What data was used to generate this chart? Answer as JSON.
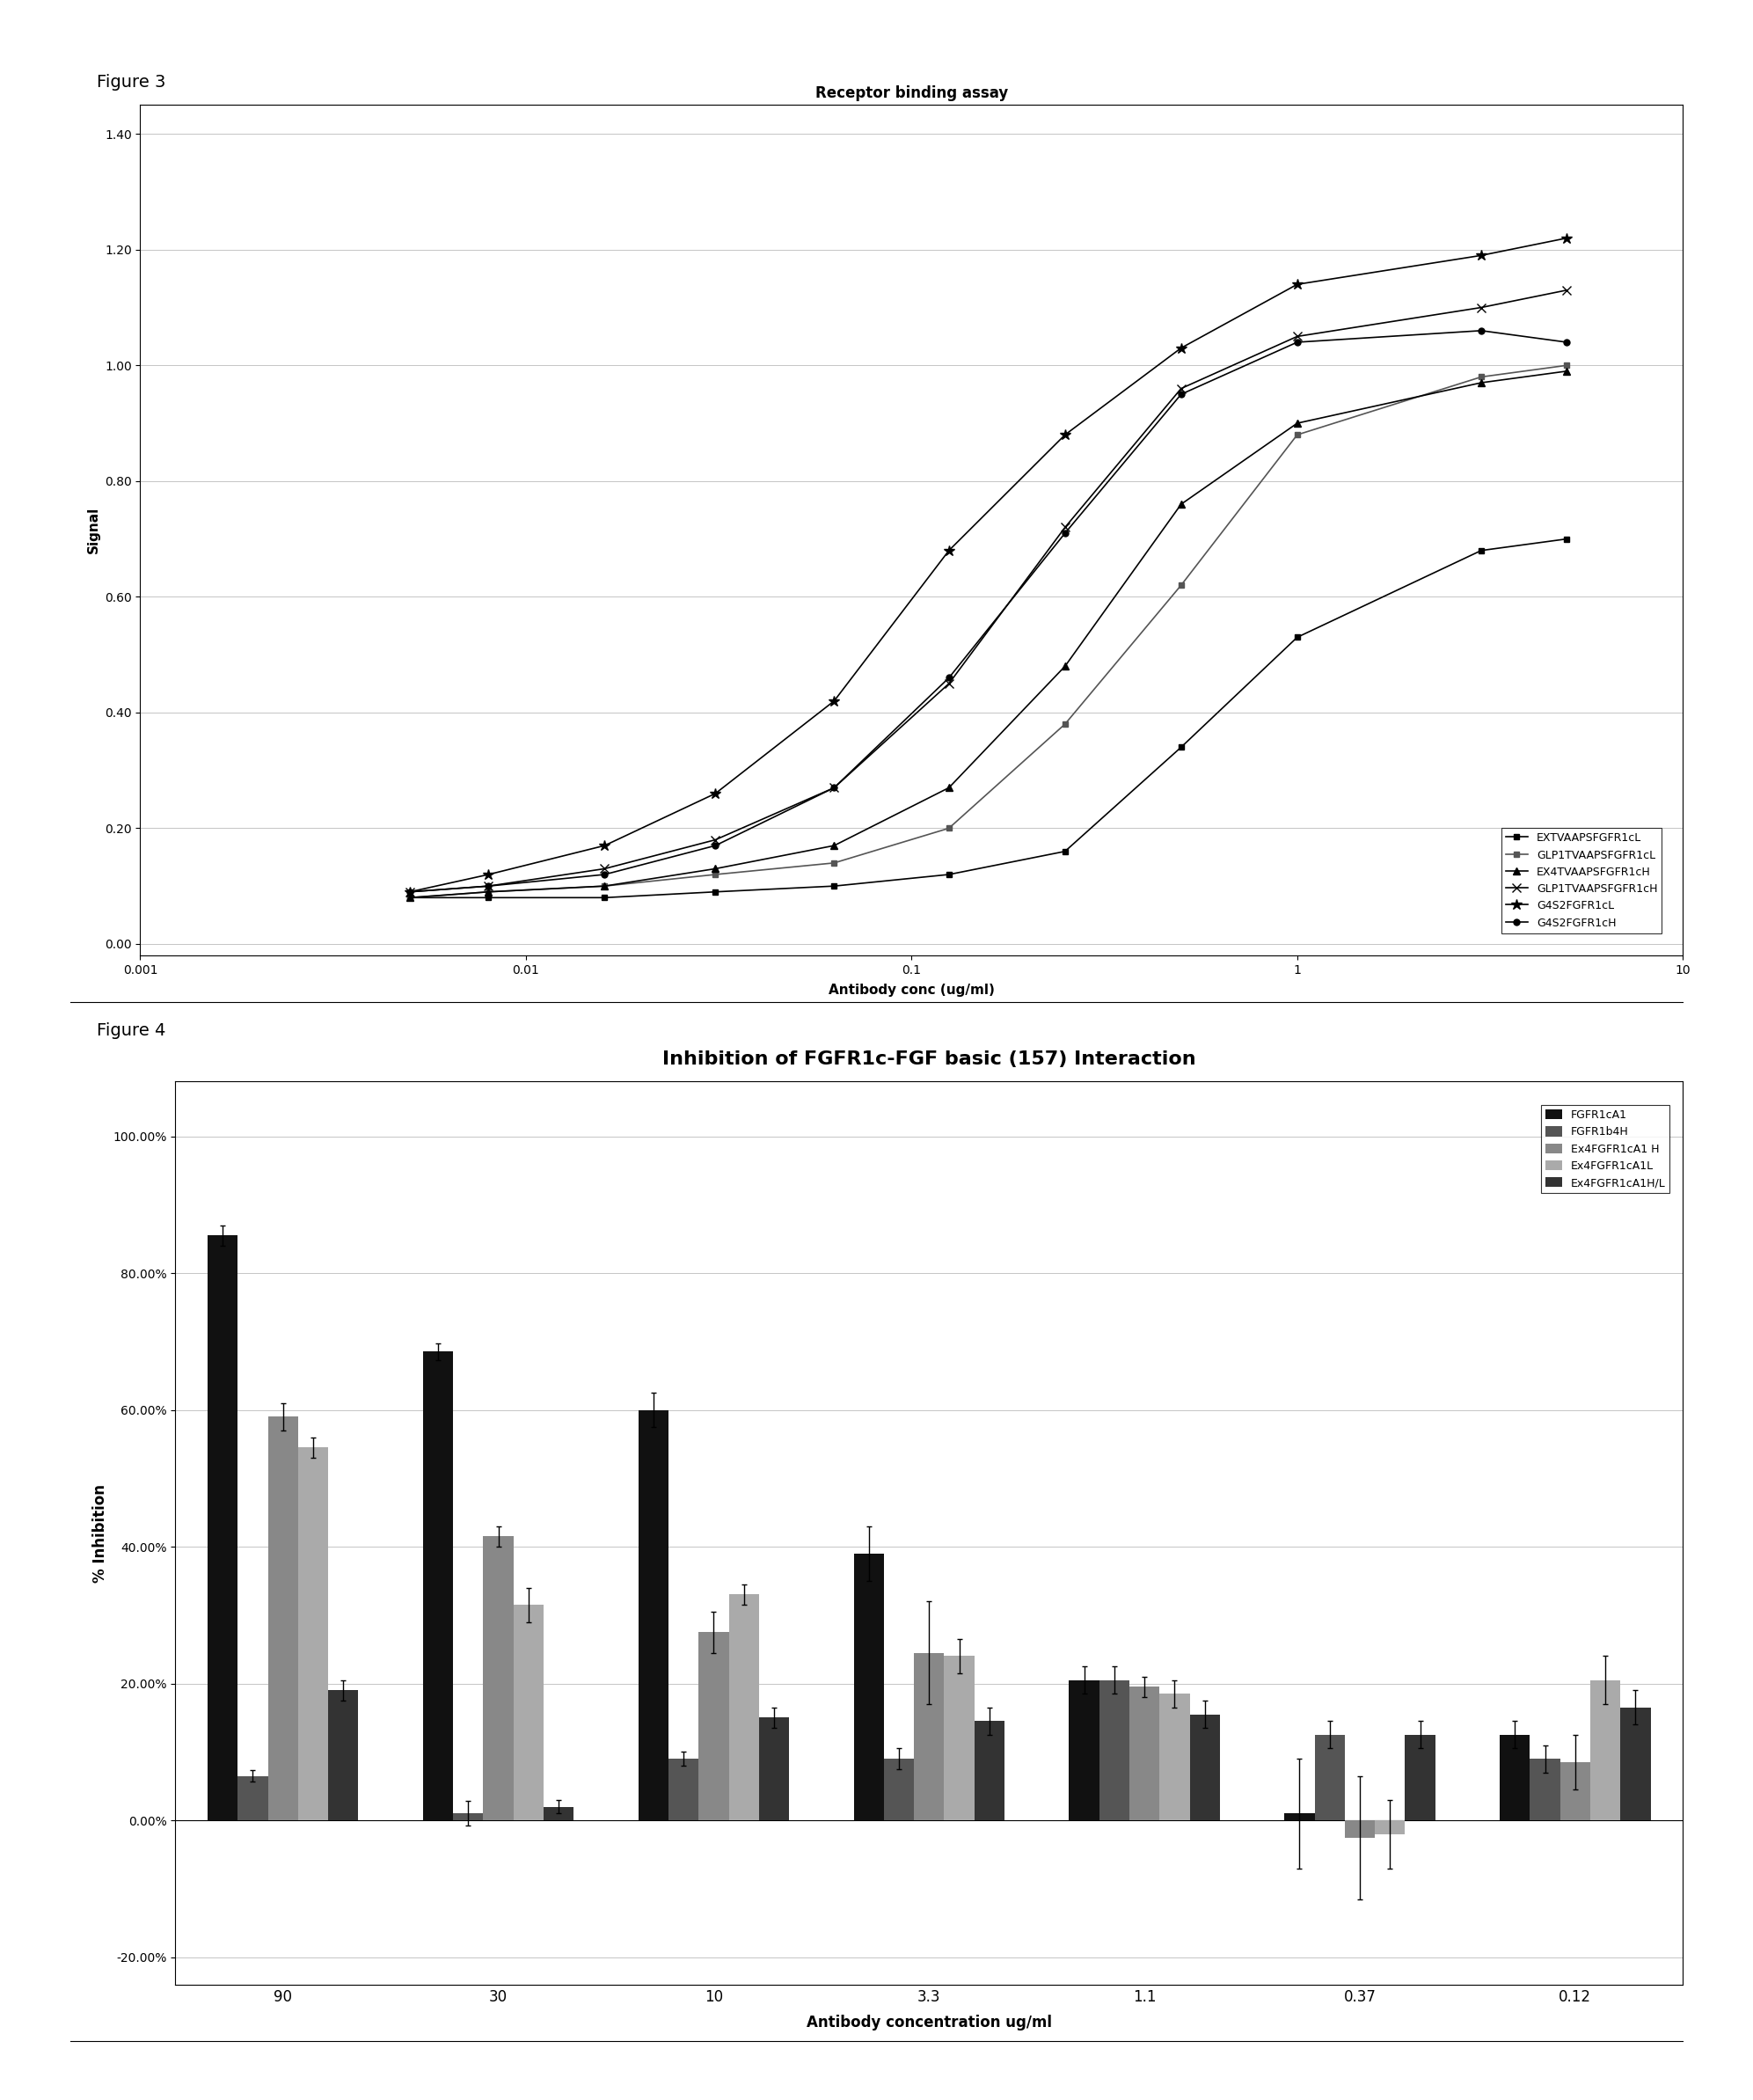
{
  "fig3": {
    "title": "Receptor binding assay",
    "xlabel": "Antibody conc (ug/ml)",
    "ylabel": "Signal",
    "xlim": [
      0.003,
      10
    ],
    "ylim": [
      -0.02,
      1.45
    ],
    "yticks": [
      0.0,
      0.2,
      0.4,
      0.6,
      0.8,
      1.0,
      1.2,
      1.4
    ],
    "yticklabels": [
      "0.00",
      "0.20",
      "0.40",
      "0.60",
      "0.80",
      "1.00",
      "1.20",
      "1.40"
    ],
    "xticks": [
      0.001,
      0.01,
      0.1,
      1,
      10
    ],
    "xticklabels": [
      "0.001",
      "0.01",
      "0.1",
      "1",
      "10"
    ],
    "series": [
      {
        "label": "EXTVAAPSFGFR1cL",
        "marker": "s",
        "markersize": 5,
        "color": "#000000",
        "x": [
          0.005,
          0.008,
          0.016,
          0.031,
          0.063,
          0.125,
          0.25,
          0.5,
          1.0,
          3.0,
          5.0
        ],
        "y": [
          0.08,
          0.08,
          0.08,
          0.09,
          0.1,
          0.12,
          0.16,
          0.34,
          0.53,
          0.68,
          0.7
        ]
      },
      {
        "label": "GLP1TVAAPSFGFR1cL",
        "marker": "s",
        "markersize": 5,
        "color": "#555555",
        "x": [
          0.005,
          0.008,
          0.016,
          0.031,
          0.063,
          0.125,
          0.25,
          0.5,
          1.0,
          3.0,
          5.0
        ],
        "y": [
          0.08,
          0.09,
          0.1,
          0.12,
          0.14,
          0.2,
          0.38,
          0.62,
          0.88,
          0.98,
          1.0
        ]
      },
      {
        "label": "EX4TVAAPSFGFR1cH",
        "marker": "^",
        "markersize": 6,
        "color": "#000000",
        "x": [
          0.005,
          0.008,
          0.016,
          0.031,
          0.063,
          0.125,
          0.25,
          0.5,
          1.0,
          3.0,
          5.0
        ],
        "y": [
          0.08,
          0.09,
          0.1,
          0.13,
          0.17,
          0.27,
          0.48,
          0.76,
          0.9,
          0.97,
          0.99
        ]
      },
      {
        "label": "GLP1TVAAPSFGFR1cH",
        "marker": "x",
        "markersize": 7,
        "color": "#000000",
        "x": [
          0.005,
          0.008,
          0.016,
          0.031,
          0.063,
          0.125,
          0.25,
          0.5,
          1.0,
          3.0,
          5.0
        ],
        "y": [
          0.09,
          0.1,
          0.13,
          0.18,
          0.27,
          0.45,
          0.72,
          0.96,
          1.05,
          1.1,
          1.13
        ]
      },
      {
        "label": "G4S2FGFR1cL",
        "marker": "*",
        "markersize": 9,
        "color": "#000000",
        "x": [
          0.005,
          0.008,
          0.016,
          0.031,
          0.063,
          0.125,
          0.25,
          0.5,
          1.0,
          3.0,
          5.0
        ],
        "y": [
          0.09,
          0.12,
          0.17,
          0.26,
          0.42,
          0.68,
          0.88,
          1.03,
          1.14,
          1.19,
          1.22
        ]
      },
      {
        "label": "G4S2FGFR1cH",
        "marker": "o",
        "markersize": 5,
        "color": "#000000",
        "x": [
          0.005,
          0.008,
          0.016,
          0.031,
          0.063,
          0.125,
          0.25,
          0.5,
          1.0,
          3.0,
          5.0
        ],
        "y": [
          0.09,
          0.1,
          0.12,
          0.17,
          0.27,
          0.46,
          0.71,
          0.95,
          1.04,
          1.06,
          1.04
        ]
      }
    ]
  },
  "fig4": {
    "title": "Inhibition of FGFR1c-FGF basic (157) Interaction",
    "xlabel": "Antibody concentration ug/ml",
    "ylabel": "% Inhibition",
    "categories": [
      "90",
      "30",
      "10",
      "3.3",
      "1.1",
      "0.37",
      "0.12"
    ],
    "ylim": [
      -0.24,
      1.08
    ],
    "yticks": [
      -0.2,
      0.0,
      0.2,
      0.4,
      0.6,
      0.8,
      1.0
    ],
    "yticklabels": [
      "-20.00%",
      "0.00%",
      "20.00%",
      "40.00%",
      "60.00%",
      "80.00%",
      "100.00%"
    ],
    "series": [
      {
        "label": "FGFR1cA1",
        "color": "#111111",
        "values": [
          0.855,
          0.685,
          0.6,
          0.39,
          0.205,
          0.01,
          0.125
        ],
        "errors": [
          0.015,
          0.012,
          0.025,
          0.04,
          0.02,
          0.08,
          0.02
        ]
      },
      {
        "label": "FGFR1b4H",
        "color": "#555555",
        "values": [
          0.065,
          0.01,
          0.09,
          0.09,
          0.205,
          0.125,
          0.09
        ],
        "errors": [
          0.008,
          0.018,
          0.01,
          0.015,
          0.02,
          0.02,
          0.02
        ]
      },
      {
        "label": "Ex4FGFR1cA1 H",
        "color": "#888888",
        "values": [
          0.59,
          0.415,
          0.275,
          0.245,
          0.195,
          -0.025,
          0.085
        ],
        "errors": [
          0.02,
          0.015,
          0.03,
          0.075,
          0.015,
          0.09,
          0.04
        ]
      },
      {
        "label": "Ex4FGFR1cA1L",
        "color": "#aaaaaa",
        "values": [
          0.545,
          0.315,
          0.33,
          0.24,
          0.185,
          -0.02,
          0.205
        ],
        "errors": [
          0.015,
          0.025,
          0.015,
          0.025,
          0.02,
          0.05,
          0.035
        ]
      },
      {
        "label": "Ex4FGFR1cA1H/L",
        "color": "#333333",
        "values": [
          0.19,
          0.02,
          0.15,
          0.145,
          0.155,
          0.125,
          0.165
        ],
        "errors": [
          0.015,
          0.01,
          0.015,
          0.02,
          0.02,
          0.02,
          0.025
        ]
      }
    ]
  }
}
